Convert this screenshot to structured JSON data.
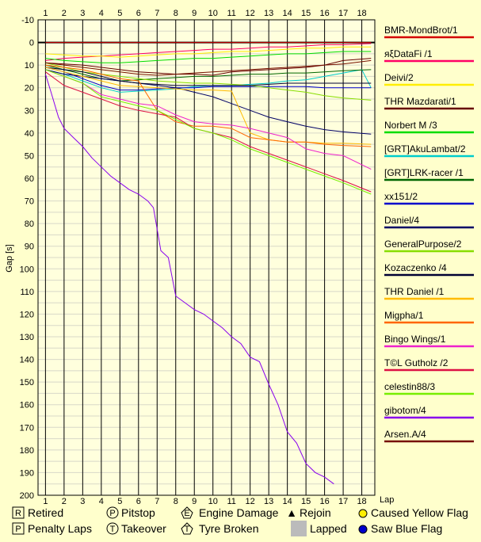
{
  "chart_data": {
    "type": "line",
    "title": "",
    "xlabel": "Lap",
    "ylabel": "Gap [s]",
    "x_ticks": [
      1,
      2,
      3,
      4,
      5,
      6,
      7,
      8,
      9,
      10,
      11,
      12,
      13,
      14,
      15,
      16,
      17,
      18
    ],
    "y_ticks": [
      -10,
      0,
      10,
      20,
      30,
      40,
      50,
      60,
      70,
      80,
      90,
      100,
      110,
      120,
      130,
      140,
      150,
      160,
      170,
      180,
      190,
      200
    ],
    "xlim": [
      0.6,
      18.7
    ],
    "ylim": [
      200,
      -10
    ],
    "grid": true,
    "legend_position": "right",
    "series": [
      {
        "name": "BMR-MondBrot/1",
        "color": "#d40000",
        "x": [
          1,
          2,
          3,
          4,
          5,
          6,
          7,
          8,
          9,
          10,
          11,
          12,
          13,
          14,
          15,
          16,
          17,
          18.5
        ],
        "values": [
          0,
          0,
          0,
          0,
          0,
          0,
          0,
          0,
          0,
          0,
          0,
          0,
          0,
          0,
          0,
          0,
          0,
          0
        ]
      },
      {
        "name": "яξDataFi /1",
        "color": "#ff0066",
        "x": [
          1,
          2,
          3,
          4,
          5,
          6,
          7,
          8,
          9,
          10,
          11,
          12,
          13,
          14,
          15,
          16,
          17,
          18.5
        ],
        "values": [
          8,
          7,
          6.5,
          6,
          5.5,
          5,
          4.5,
          4,
          3.5,
          3,
          3,
          2.5,
          2,
          2,
          1.5,
          1,
          1,
          0.5
        ]
      },
      {
        "name": "Deivi/2",
        "color": "#ffee00",
        "x": [
          1,
          2,
          3,
          4,
          5,
          6,
          7,
          8,
          9,
          10,
          11,
          12,
          13,
          14,
          15,
          16,
          17,
          18.5
        ],
        "values": [
          5,
          5.5,
          6,
          6,
          6.5,
          6,
          5.5,
          5,
          5,
          4.5,
          4,
          4,
          3.5,
          3,
          2.5,
          2.5,
          2,
          2
        ]
      },
      {
        "name": "THR Mazdarati/1",
        "color": "#660000",
        "x": [
          1,
          2,
          3,
          4,
          5,
          6,
          7,
          8,
          9,
          10,
          11,
          12,
          13,
          14,
          15,
          16,
          17,
          18.5
        ],
        "values": [
          9,
          9.5,
          10,
          11,
          12,
          13,
          13.5,
          14,
          14,
          14.5,
          13,
          12.5,
          12,
          11.5,
          11,
          10,
          8,
          7
        ]
      },
      {
        "name": "Norbert M /3",
        "color": "#00dd00",
        "x": [
          1,
          2,
          3,
          4,
          5,
          6,
          7,
          8,
          9,
          10,
          11,
          12,
          13,
          14,
          15,
          16,
          17,
          18.5
        ],
        "values": [
          7,
          8,
          8.5,
          9,
          9,
          8.5,
          8,
          7.5,
          7,
          7,
          6.5,
          6,
          5.5,
          5,
          5,
          4.5,
          4,
          4
        ]
      },
      {
        "name": "[GRT]AkuLambat/2",
        "color": "#00cccc",
        "x": [
          1,
          2,
          3,
          4,
          5,
          6,
          7,
          8,
          9,
          10,
          11,
          12,
          13,
          14,
          15,
          16,
          17,
          18,
          18.5
        ],
        "values": [
          12,
          14,
          17,
          20,
          22,
          21.5,
          21,
          20.5,
          19.5,
          19,
          19,
          18.5,
          18,
          17,
          16.5,
          15,
          13.5,
          12,
          20
        ]
      },
      {
        "name": "[GRT]LRK-racer /1",
        "color": "#006600",
        "x": [
          1,
          2,
          3,
          4,
          5,
          6,
          7,
          8,
          9,
          10,
          11,
          12,
          13,
          14,
          15,
          16,
          17,
          18.5
        ],
        "values": [
          10,
          12,
          14,
          16,
          17,
          16.5,
          16,
          15.5,
          15,
          15,
          14.5,
          14,
          14,
          13.5,
          13.5,
          13,
          12.5,
          12
        ]
      },
      {
        "name": "xx151/2",
        "color": "#0000cc",
        "x": [
          1,
          2,
          3,
          4,
          5,
          6,
          7,
          8,
          9,
          10,
          11,
          12,
          13,
          14,
          15,
          16,
          17,
          18.5
        ],
        "values": [
          11,
          13,
          16,
          19,
          21,
          21,
          20.5,
          20,
          20,
          19.5,
          19.5,
          19.5,
          19.5,
          19.5,
          19.5,
          20,
          20,
          20
        ]
      },
      {
        "name": "Daniel/4",
        "color": "#000066",
        "x": [
          1,
          2,
          3,
          4,
          5,
          6,
          7,
          8,
          9,
          10,
          11,
          12,
          13,
          14,
          15,
          16,
          17,
          18.5
        ],
        "values": [
          12,
          14,
          15,
          16,
          17,
          18,
          19,
          20,
          22,
          24,
          27,
          30,
          33,
          35,
          37,
          38.5,
          39.5,
          40.5
        ]
      },
      {
        "name": "GeneralPurpose/2",
        "color": "#88dd00",
        "x": [
          1,
          2,
          3,
          4,
          5,
          6,
          7,
          8,
          9,
          10,
          11,
          12,
          13,
          14,
          15,
          16,
          17,
          18.5
        ],
        "values": [
          9,
          11,
          13,
          14,
          15,
          16,
          17,
          17.5,
          18,
          18,
          18.5,
          19,
          20,
          21,
          22,
          23.5,
          24.5,
          25.5
        ]
      },
      {
        "name": "Kozaczenko /4",
        "color": "#000033",
        "x": [
          1,
          2,
          3,
          4,
          5,
          6,
          7,
          8,
          9,
          10,
          11,
          12,
          13,
          14,
          15,
          16,
          17,
          18.5
        ],
        "values": [
          11,
          12,
          13,
          15,
          17,
          18,
          18.5,
          19,
          19,
          19,
          19,
          19,
          18.5,
          18,
          18,
          18,
          18,
          18
        ]
      },
      {
        "name": "THR Daniel /1",
        "color": "#ffbb00",
        "x": [
          1,
          2,
          3,
          4,
          5,
          6,
          7,
          8,
          9,
          10,
          11,
          12,
          13,
          14,
          15,
          16,
          17,
          18.5
        ],
        "values": [
          11,
          13,
          15,
          17,
          19,
          19.5,
          20,
          20.5,
          21,
          21,
          21.5,
          40,
          43,
          44,
          44,
          44.5,
          44.5,
          45
        ]
      },
      {
        "name": "Migpha/1",
        "color": "#ff6600",
        "x": [
          1,
          2,
          3,
          4,
          5,
          6,
          7,
          8,
          9,
          10,
          11,
          12,
          13,
          14,
          15,
          16,
          17,
          18.5
        ],
        "values": [
          10,
          11,
          12,
          14,
          16,
          17,
          30,
          35,
          37,
          37,
          38,
          42,
          43,
          44,
          44,
          45,
          45.5,
          46
        ]
      },
      {
        "name": "Bingo Wings/1",
        "color": "#ee22cc",
        "x": [
          1,
          2,
          3,
          4,
          5,
          6,
          7,
          8,
          9,
          10,
          11,
          12,
          13,
          14,
          15,
          16,
          17,
          18.5
        ],
        "values": [
          12,
          15,
          18,
          23,
          25,
          27,
          28,
          32,
          35,
          36,
          36.5,
          38,
          40,
          42,
          47,
          49,
          50,
          56
        ]
      },
      {
        "name": "T©L Gutholz /2",
        "color": "#dd1144",
        "x": [
          1,
          2,
          3,
          4,
          5,
          6,
          7,
          8,
          9,
          10,
          11,
          12,
          13,
          14,
          15,
          16,
          17,
          18.5
        ],
        "values": [
          13,
          19,
          22,
          25,
          28,
          30,
          31.5,
          33,
          38,
          40,
          42,
          46,
          49,
          52,
          55,
          58,
          61,
          66
        ]
      },
      {
        "name": "celestin88/3",
        "color": "#77ee00",
        "x": [
          1,
          2,
          3,
          4,
          5,
          6,
          7,
          8,
          9,
          10,
          11,
          12,
          13,
          14,
          15,
          16,
          17,
          18.5
        ],
        "values": [
          12,
          15,
          18,
          24,
          26,
          28,
          30,
          34,
          38,
          40,
          43,
          47,
          50,
          53,
          56,
          59,
          62,
          67
        ]
      },
      {
        "name": "gibotom/4",
        "color": "#8800ee",
        "x": [
          1,
          1.3,
          1.7,
          2,
          2.5,
          3,
          3.5,
          4,
          4.5,
          5,
          5.5,
          6,
          6.5,
          6.8,
          7.2,
          7.6,
          8,
          8.5,
          9,
          9.5,
          10,
          10.5,
          11,
          11.5,
          12,
          12.5,
          13,
          13.5,
          14,
          14.5,
          15,
          15.5,
          16,
          16.5
        ],
        "values": [
          14,
          22,
          33,
          38,
          42,
          46,
          51,
          55,
          59,
          62,
          65,
          67,
          70,
          73,
          92,
          95,
          112,
          115,
          118,
          120,
          123,
          126,
          130,
          133,
          139,
          141,
          151,
          160,
          172,
          177,
          186,
          190,
          192,
          195
        ]
      },
      {
        "name": "Arsen.A/4",
        "color": "#771100",
        "x": [
          1,
          2,
          3,
          4,
          5,
          6,
          7,
          8,
          9,
          10,
          11,
          12,
          13,
          14,
          15,
          16,
          17,
          18.5
        ],
        "values": [
          9,
          10,
          11,
          12,
          13,
          14,
          14.5,
          14,
          13.5,
          13,
          12.5,
          12,
          11.5,
          11,
          10.5,
          10,
          9.5,
          8
        ]
      }
    ]
  },
  "key": {
    "retired": {
      "symbol": "R",
      "label": "Retired"
    },
    "pitstop": {
      "symbol": "P",
      "label": "Pitstop"
    },
    "engine_damage": {
      "symbol": "E",
      "label": "Engine Damage"
    },
    "rejoin": {
      "symbol": "▲",
      "label": "Rejoin"
    },
    "caused_yellow_flag": {
      "label": "Caused Yellow Flag",
      "color": "#ffee00"
    },
    "penalty_laps": {
      "symbol": "P",
      "label": "Penalty Laps"
    },
    "takeover": {
      "symbol": "T",
      "label": "Takeover"
    },
    "tyre_broken": {
      "symbol": "T",
      "label": "Tyre Broken"
    },
    "lapped": {
      "label": "Lapped",
      "color": "#bbbbbb"
    },
    "saw_blue_flag": {
      "label": "Saw Blue Flag",
      "color": "#0000cc"
    }
  }
}
